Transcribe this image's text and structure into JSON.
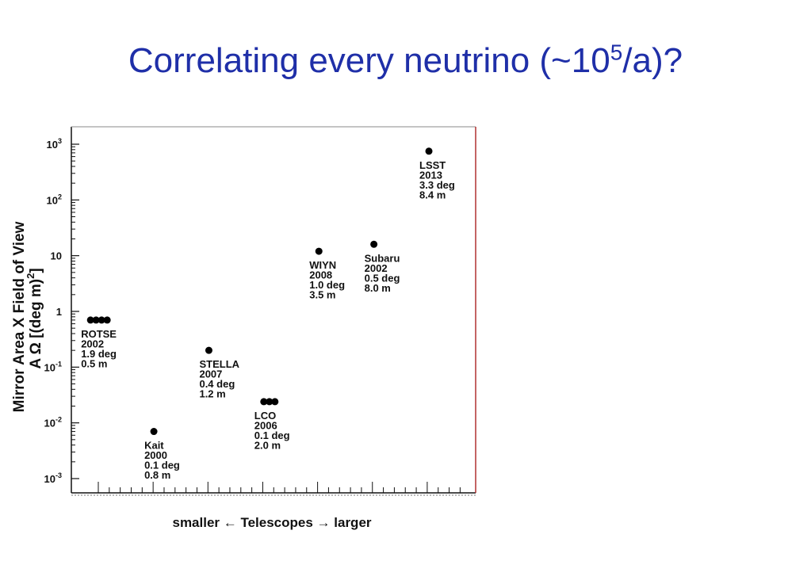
{
  "slide": {
    "title_main": "Correlating every neutrino (~10",
    "title_sup": "5",
    "title_end": "/a)?"
  },
  "colors": {
    "title": "#1f2fa8",
    "frame": "#111111",
    "frame_right": "#b03030"
  },
  "chart_data": {
    "type": "scatter",
    "title": "",
    "xlabel": "smaller ← Telescopes → larger",
    "ylabel_line1": "Mirror Area X Field of View",
    "ylabel_line2": "A Ω   [(deg m)",
    "ylabel_line2_sup": "2",
    "ylabel_line2_end": "]",
    "y_scale": "log",
    "ylim": [
      0.001,
      1000
    ],
    "y_ticks": [
      {
        "base": "10",
        "exp": "3",
        "value": 1000
      },
      {
        "base": "10",
        "exp": "2",
        "value": 100
      },
      {
        "base": "10",
        "exp": "",
        "value": 10
      },
      {
        "base": "1",
        "exp": "",
        "value": 1
      },
      {
        "base": "10",
        "exp": "-1",
        "value": 0.1
      },
      {
        "base": "10",
        "exp": "-2",
        "value": 0.01
      },
      {
        "base": "10",
        "exp": "-3",
        "value": 0.001
      }
    ],
    "x_ticks": "none",
    "grid": false,
    "points": [
      {
        "name": "ROTSE",
        "year": "2002",
        "fov": "1.9 deg",
        "mirror": "0.5 m",
        "value": 0.7,
        "order": 0.5,
        "markers": 4
      },
      {
        "name": "Kait",
        "year": "2000",
        "fov": "0.1 deg",
        "mirror": "0.8 m",
        "value": 0.007,
        "order": 1.5,
        "markers": 1
      },
      {
        "name": "STELLA",
        "year": "2007",
        "fov": "0.4 deg",
        "mirror": "1.2 m",
        "value": 0.2,
        "order": 2.5,
        "markers": 1
      },
      {
        "name": "LCO",
        "year": "2006",
        "fov": "0.1 deg",
        "mirror": "2.0 m",
        "value": 0.024,
        "order": 3.6,
        "markers": 3
      },
      {
        "name": "WIYN",
        "year": "2008",
        "fov": "1.0 deg",
        "mirror": "3.5 m",
        "value": 12,
        "order": 4.5,
        "markers": 1
      },
      {
        "name": "Subaru",
        "year": "2002",
        "fov": "0.5 deg",
        "mirror": "8.0 m",
        "value": 16,
        "order": 5.5,
        "markers": 1
      },
      {
        "name": "LSST",
        "year": "2013",
        "fov": "3.3 deg",
        "mirror": "8.4 m",
        "value": 750,
        "order": 6.5,
        "markers": 1
      }
    ]
  }
}
